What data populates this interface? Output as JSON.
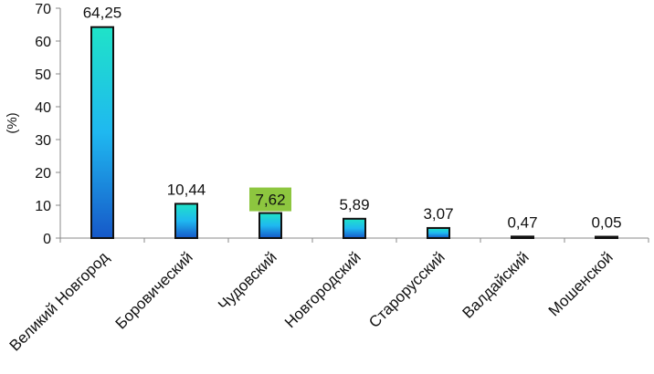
{
  "chart_data": {
    "type": "bar",
    "title": "",
    "xlabel": "",
    "ylabel": "(%)",
    "ylim": [
      0,
      70
    ],
    "yticks": [
      0,
      10,
      20,
      30,
      40,
      50,
      60,
      70
    ],
    "grid": false,
    "legend": "none",
    "categories": [
      "Великий Новгород",
      "Боровический",
      "Чудовский",
      "Новгородский",
      "Старорусский",
      "Валдайский",
      "Мошенской"
    ],
    "values": [
      64.25,
      10.44,
      7.62,
      5.89,
      3.07,
      0.47,
      0.05
    ],
    "value_labels": [
      "64,25",
      "10,44",
      "7,62",
      "5,89",
      "3,07",
      "0,47",
      "0,05"
    ],
    "highlighted_category": "Чудовский",
    "colors": {
      "bar_top": "#1fe3c8",
      "bar_mid": "#1fb8f0",
      "bar_bottom": "#1658c8",
      "bar_outline": "#111111",
      "highlight_label_bg": "#8dc63f"
    }
  }
}
